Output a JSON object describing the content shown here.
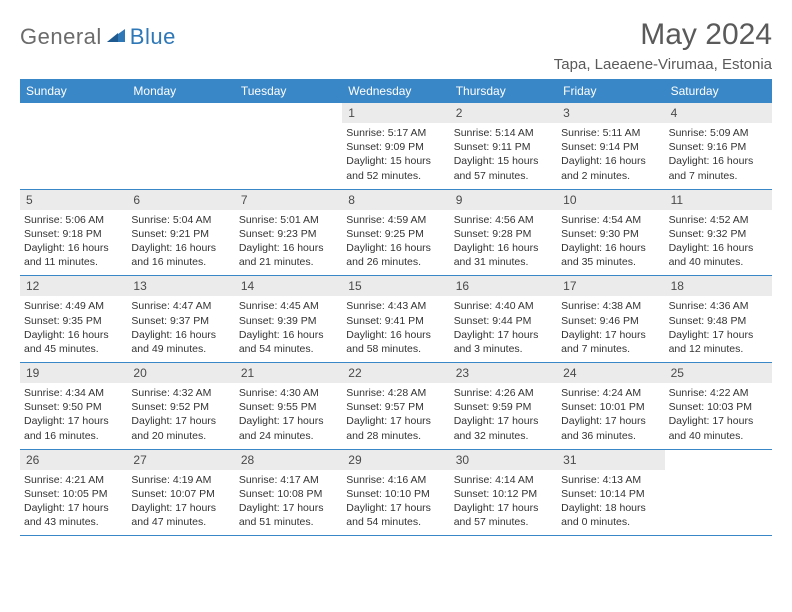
{
  "brand": {
    "part1": "General",
    "part2": "Blue"
  },
  "colors": {
    "header_bg": "#3a87c8",
    "daynum_bg": "#ebebeb",
    "text_gray": "#5a5a5a",
    "logo_gray": "#6b6b6b",
    "logo_blue": "#2f78b7",
    "rule": "#3a87c8"
  },
  "title": "May 2024",
  "location": "Tapa, Laeaene-Virumaa, Estonia",
  "dayNames": [
    "Sunday",
    "Monday",
    "Tuesday",
    "Wednesday",
    "Thursday",
    "Friday",
    "Saturday"
  ],
  "weeks": [
    [
      null,
      null,
      null,
      {
        "n": "1",
        "sr": "5:17 AM",
        "ss": "9:09 PM",
        "dl": "15 hours and 52 minutes."
      },
      {
        "n": "2",
        "sr": "5:14 AM",
        "ss": "9:11 PM",
        "dl": "15 hours and 57 minutes."
      },
      {
        "n": "3",
        "sr": "5:11 AM",
        "ss": "9:14 PM",
        "dl": "16 hours and 2 minutes."
      },
      {
        "n": "4",
        "sr": "5:09 AM",
        "ss": "9:16 PM",
        "dl": "16 hours and 7 minutes."
      }
    ],
    [
      {
        "n": "5",
        "sr": "5:06 AM",
        "ss": "9:18 PM",
        "dl": "16 hours and 11 minutes."
      },
      {
        "n": "6",
        "sr": "5:04 AM",
        "ss": "9:21 PM",
        "dl": "16 hours and 16 minutes."
      },
      {
        "n": "7",
        "sr": "5:01 AM",
        "ss": "9:23 PM",
        "dl": "16 hours and 21 minutes."
      },
      {
        "n": "8",
        "sr": "4:59 AM",
        "ss": "9:25 PM",
        "dl": "16 hours and 26 minutes."
      },
      {
        "n": "9",
        "sr": "4:56 AM",
        "ss": "9:28 PM",
        "dl": "16 hours and 31 minutes."
      },
      {
        "n": "10",
        "sr": "4:54 AM",
        "ss": "9:30 PM",
        "dl": "16 hours and 35 minutes."
      },
      {
        "n": "11",
        "sr": "4:52 AM",
        "ss": "9:32 PM",
        "dl": "16 hours and 40 minutes."
      }
    ],
    [
      {
        "n": "12",
        "sr": "4:49 AM",
        "ss": "9:35 PM",
        "dl": "16 hours and 45 minutes."
      },
      {
        "n": "13",
        "sr": "4:47 AM",
        "ss": "9:37 PM",
        "dl": "16 hours and 49 minutes."
      },
      {
        "n": "14",
        "sr": "4:45 AM",
        "ss": "9:39 PM",
        "dl": "16 hours and 54 minutes."
      },
      {
        "n": "15",
        "sr": "4:43 AM",
        "ss": "9:41 PM",
        "dl": "16 hours and 58 minutes."
      },
      {
        "n": "16",
        "sr": "4:40 AM",
        "ss": "9:44 PM",
        "dl": "17 hours and 3 minutes."
      },
      {
        "n": "17",
        "sr": "4:38 AM",
        "ss": "9:46 PM",
        "dl": "17 hours and 7 minutes."
      },
      {
        "n": "18",
        "sr": "4:36 AM",
        "ss": "9:48 PM",
        "dl": "17 hours and 12 minutes."
      }
    ],
    [
      {
        "n": "19",
        "sr": "4:34 AM",
        "ss": "9:50 PM",
        "dl": "17 hours and 16 minutes."
      },
      {
        "n": "20",
        "sr": "4:32 AM",
        "ss": "9:52 PM",
        "dl": "17 hours and 20 minutes."
      },
      {
        "n": "21",
        "sr": "4:30 AM",
        "ss": "9:55 PM",
        "dl": "17 hours and 24 minutes."
      },
      {
        "n": "22",
        "sr": "4:28 AM",
        "ss": "9:57 PM",
        "dl": "17 hours and 28 minutes."
      },
      {
        "n": "23",
        "sr": "4:26 AM",
        "ss": "9:59 PM",
        "dl": "17 hours and 32 minutes."
      },
      {
        "n": "24",
        "sr": "4:24 AM",
        "ss": "10:01 PM",
        "dl": "17 hours and 36 minutes."
      },
      {
        "n": "25",
        "sr": "4:22 AM",
        "ss": "10:03 PM",
        "dl": "17 hours and 40 minutes."
      }
    ],
    [
      {
        "n": "26",
        "sr": "4:21 AM",
        "ss": "10:05 PM",
        "dl": "17 hours and 43 minutes."
      },
      {
        "n": "27",
        "sr": "4:19 AM",
        "ss": "10:07 PM",
        "dl": "17 hours and 47 minutes."
      },
      {
        "n": "28",
        "sr": "4:17 AM",
        "ss": "10:08 PM",
        "dl": "17 hours and 51 minutes."
      },
      {
        "n": "29",
        "sr": "4:16 AM",
        "ss": "10:10 PM",
        "dl": "17 hours and 54 minutes."
      },
      {
        "n": "30",
        "sr": "4:14 AM",
        "ss": "10:12 PM",
        "dl": "17 hours and 57 minutes."
      },
      {
        "n": "31",
        "sr": "4:13 AM",
        "ss": "10:14 PM",
        "dl": "18 hours and 0 minutes."
      },
      null
    ]
  ],
  "labels": {
    "sunrise": "Sunrise:",
    "sunset": "Sunset:",
    "daylight": "Daylight:"
  }
}
